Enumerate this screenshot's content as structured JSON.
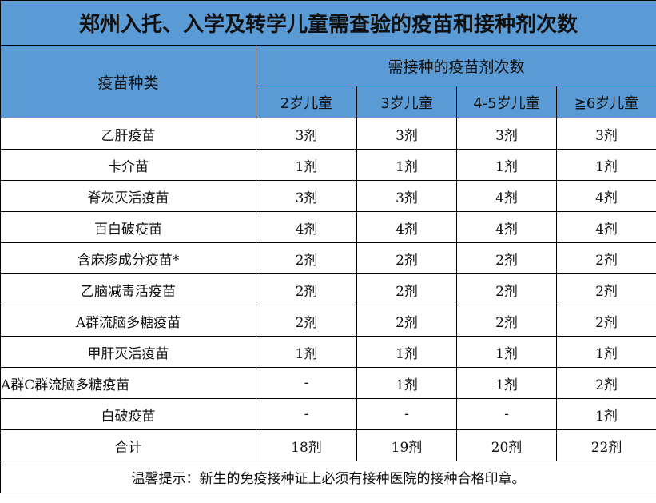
{
  "title": "郑州入托、入学及转学儿童需查验的疫苗和接种剂次数",
  "header": {
    "vaccine_type": "疫苗种类",
    "doses_group": "需接种的疫苗剂次数",
    "columns": [
      "2岁儿童",
      "3岁儿童",
      "4-5岁儿童",
      "≧6岁儿童"
    ]
  },
  "rows": [
    {
      "name": "乙肝疫苗",
      "doses": [
        "3剂",
        "3剂",
        "3剂",
        "3剂"
      ]
    },
    {
      "name": "卡介苗",
      "doses": [
        "1剂",
        "1剂",
        "1剂",
        "1剂"
      ]
    },
    {
      "name": "脊灰灭活疫苗",
      "doses": [
        "3剂",
        "3剂",
        "4剂",
        "4剂"
      ]
    },
    {
      "name": "百白破疫苗",
      "doses": [
        "4剂",
        "4剂",
        "4剂",
        "4剂"
      ]
    },
    {
      "name": "含麻疹成分疫苗*",
      "doses": [
        "2剂",
        "2剂",
        "2剂",
        "2剂"
      ]
    },
    {
      "name": "乙脑减毒活疫苗",
      "doses": [
        "2剂",
        "2剂",
        "2剂",
        "2剂"
      ]
    },
    {
      "name": "A群流脑多糖疫苗",
      "doses": [
        "2剂",
        "2剂",
        "2剂",
        "2剂"
      ]
    },
    {
      "name": "甲肝灭活疫苗",
      "doses": [
        "1剂",
        "1剂",
        "1剂",
        "1剂"
      ]
    },
    {
      "name": "A群C群流脑多糖疫苗",
      "doses": [
        "-",
        "1剂",
        "1剂",
        "2剂"
      ]
    },
    {
      "name": "白破疫苗",
      "doses": [
        "-",
        "-",
        "-",
        "1剂"
      ]
    }
  ],
  "total": {
    "name": "合计",
    "doses": [
      "18剂",
      "19剂",
      "20剂",
      "22剂"
    ]
  },
  "footer_note": "温馨提示：新生的免疫接种证上必须有接种医院的接种合格印章。",
  "colors": {
    "header_bg": "#5b9bd5",
    "header_text": "#ffffff"
  }
}
